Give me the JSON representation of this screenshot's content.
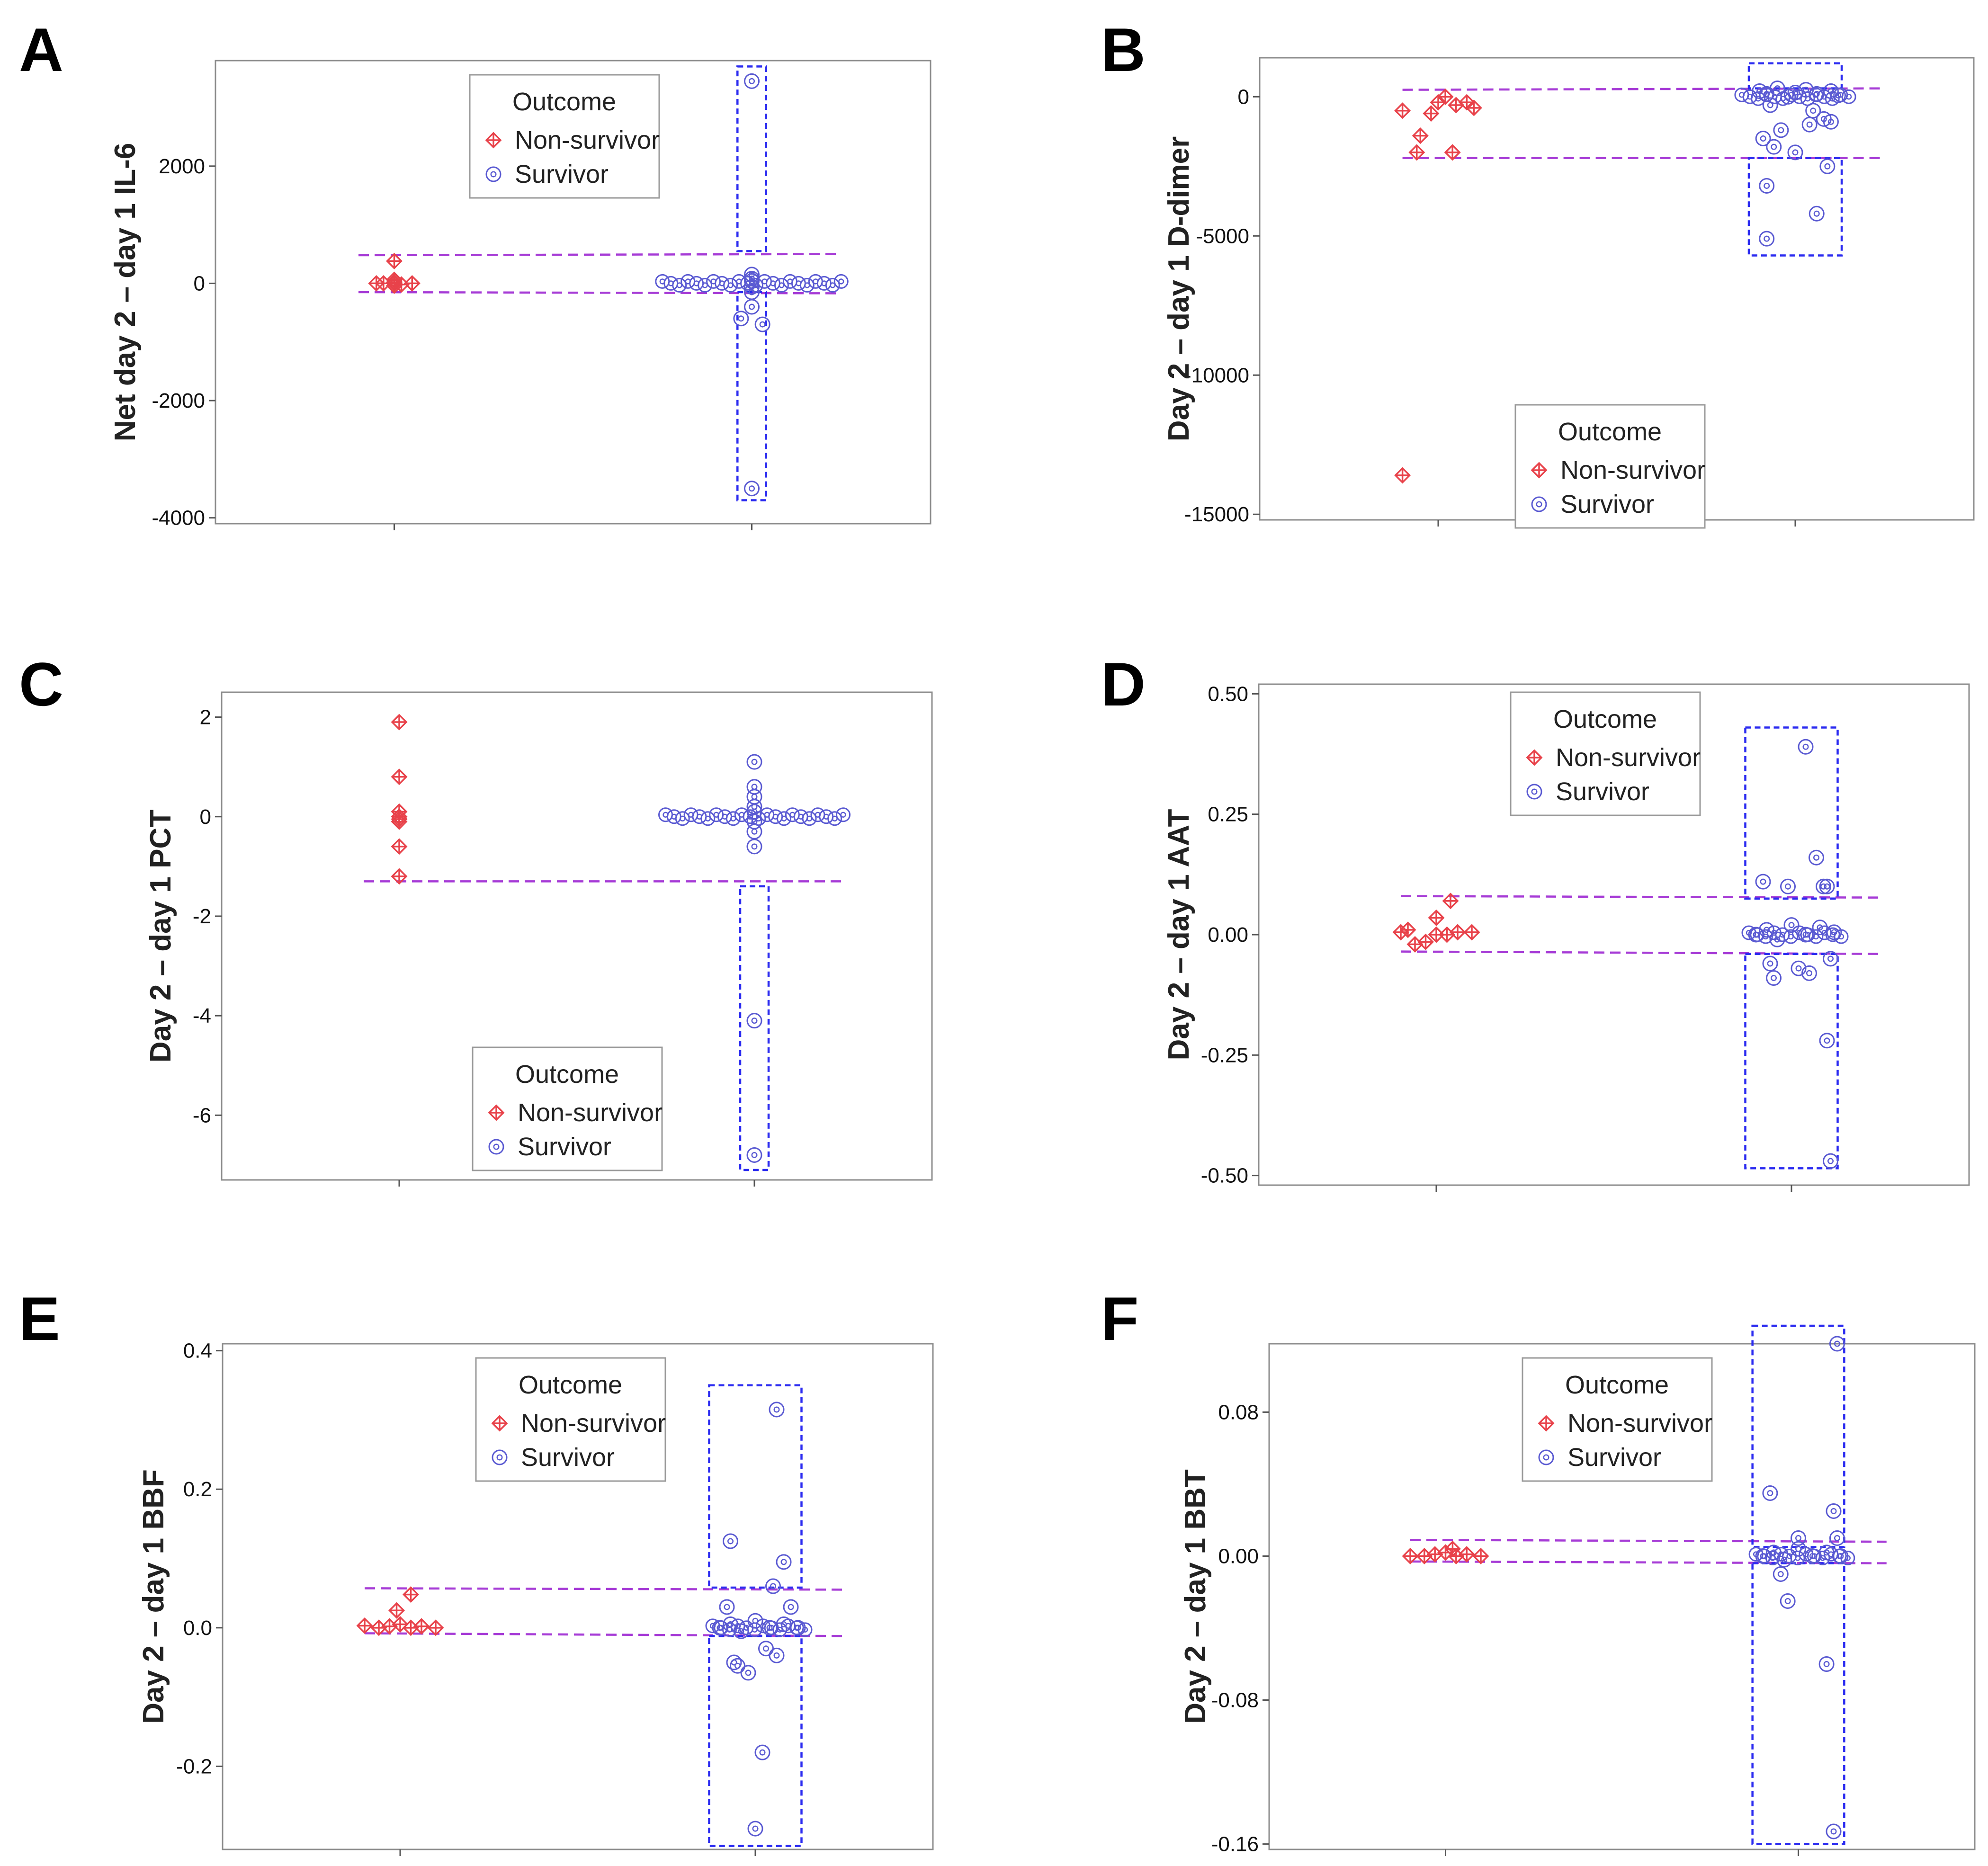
{
  "colors": {
    "non_survivor": "#e8424a",
    "survivor": "#5a5ad2",
    "threshold_line": "#a63bd6",
    "outlier_box": "#2b2bf0",
    "frame": "#8c8c8c"
  },
  "chart_data": [
    {
      "panel": "A",
      "type": "scatter",
      "ylabel": "Net day 2 – day 1 IL-6",
      "ylim": [
        -4100,
        3800
      ],
      "yticks": [
        2000,
        0,
        -2000,
        -4000
      ],
      "ytick_labels": [
        "2000",
        "0",
        "-2000",
        "-4000"
      ],
      "legend": {
        "title": "Outcome",
        "items": [
          "Non-survivor",
          "Survivor"
        ],
        "placement": "top-center"
      },
      "series": [
        {
          "name": "Non-survivor",
          "x": [
            0.95,
            1.0,
            1.0,
            1.0,
            1.0,
            1.02,
            1.05,
            0.97,
            1.0
          ],
          "y": [
            0,
            380,
            60,
            20,
            0,
            -20,
            0,
            0,
            -40
          ]
        },
        {
          "name": "Survivor",
          "x": [
            2.0,
            2.0,
            2.0,
            2.0,
            2.0,
            2.0,
            2.0,
            1.97,
            2.03,
            2.0
          ],
          "y": [
            3450,
            150,
            80,
            40,
            -60,
            -150,
            -400,
            -600,
            -700,
            -3500
          ]
        }
      ],
      "survivor_band": {
        "x_from": 1.75,
        "x_to": 2.25,
        "y": 0
      },
      "thresholds": [
        {
          "y_start": 480,
          "y_end": 500
        },
        {
          "y_start": -150,
          "y_end": -170
        }
      ],
      "outlier_boxes": [
        {
          "y_from": 550,
          "y_to": 3700
        },
        {
          "y_from": -3700,
          "y_to": -150
        }
      ]
    },
    {
      "panel": "B",
      "type": "scatter",
      "ylabel": "Day 2 – day 1 D-dimer",
      "ylim": [
        -15200,
        1400
      ],
      "yticks": [
        0,
        -5000,
        -10000,
        -15000
      ],
      "ytick_labels": [
        "0",
        "-5000",
        "-10000",
        "-15000"
      ],
      "legend": {
        "title": "Outcome",
        "items": [
          "Non-survivor",
          "Survivor"
        ],
        "placement": "bottom-center"
      },
      "series": [
        {
          "name": "Non-survivor",
          "x": [
            0.9,
            0.95,
            0.98,
            1.0,
            1.02,
            1.05,
            1.08,
            1.1,
            0.94,
            1.04,
            0.9
          ],
          "y": [
            -500,
            -1400,
            -600,
            -200,
            0,
            -300,
            -200,
            -400,
            -2000,
            -2000,
            -13600
          ]
        },
        {
          "name": "Survivor",
          "x": [
            1.9,
            1.92,
            1.95,
            1.98,
            2.0,
            2.03,
            2.06,
            2.1,
            2.12,
            1.93,
            2.05,
            2.08,
            1.96,
            2.04,
            2.1,
            1.91,
            1.94,
            2.0,
            2.09,
            1.92,
            2.06
          ],
          "y": [
            200,
            100,
            300,
            0,
            150,
            250,
            100,
            200,
            50,
            -300,
            -500,
            -800,
            -1200,
            -1000,
            -900,
            -1500,
            -1800,
            -2000,
            -2500,
            -3200,
            -4200
          ]
        }
      ],
      "extra_points": [
        {
          "x": 1.92,
          "y": -5100
        }
      ],
      "survivor_band": {
        "x_from": 1.85,
        "x_to": 2.15,
        "y": 0
      },
      "thresholds": [
        {
          "y_start": 250,
          "y_end": 300
        },
        {
          "y_start": -2200,
          "y_end": -2200
        }
      ],
      "outlier_boxes": [
        {
          "y_from": 300,
          "y_to": 1200
        },
        {
          "y_from": -5700,
          "y_to": -2200
        }
      ]
    },
    {
      "panel": "C",
      "type": "scatter",
      "ylabel": "Day 2 – day 1 PCT",
      "ylim": [
        -7.3,
        2.5
      ],
      "yticks": [
        2,
        0,
        -2,
        -4,
        -6
      ],
      "ytick_labels": [
        "2",
        "0",
        "-2",
        "-4",
        "-6"
      ],
      "legend": {
        "title": "Outcome",
        "items": [
          "Non-survivor",
          "Survivor"
        ],
        "placement": "bottom-center"
      },
      "series": [
        {
          "name": "Non-survivor",
          "x": [
            1.0,
            1.0,
            1.0,
            1.0,
            1.0,
            1.0,
            1.0,
            1.0
          ],
          "y": [
            1.9,
            0.8,
            0.1,
            0.0,
            -0.05,
            -0.1,
            -0.6,
            -1.2
          ]
        },
        {
          "name": "Survivor",
          "x": [
            2.0,
            2.0,
            2.0,
            2.0,
            2.0,
            2.0,
            2.0,
            2.0,
            2.0,
            2.0
          ],
          "y": [
            1.1,
            0.6,
            0.4,
            0.2,
            0.1,
            -0.1,
            -0.3,
            -0.6,
            -4.1,
            -6.8
          ]
        }
      ],
      "survivor_band": {
        "x_from": 1.75,
        "x_to": 2.25,
        "y": 0
      },
      "thresholds": [
        {
          "y_start": -1.3,
          "y_end": -1.3
        }
      ],
      "outlier_boxes": [
        {
          "y_from": -7.1,
          "y_to": -1.4
        }
      ]
    },
    {
      "panel": "D",
      "type": "scatter",
      "ylabel": "Day 2 – day 1 AAT",
      "ylim": [
        -0.52,
        0.52
      ],
      "yticks": [
        0.5,
        0.25,
        0.0,
        -0.25,
        -0.5
      ],
      "ytick_labels": [
        "0.50",
        "0.25",
        "0.00",
        "-0.25",
        "-0.50"
      ],
      "legend": {
        "title": "Outcome",
        "items": [
          "Non-survivor",
          "Survivor"
        ],
        "placement": "top-center"
      },
      "series": [
        {
          "name": "Non-survivor",
          "x": [
            0.9,
            0.94,
            0.97,
            1.0,
            1.03,
            1.06,
            1.1,
            1.04,
            0.92,
            1.0
          ],
          "y": [
            0.005,
            -0.02,
            -0.015,
            0.035,
            0.0,
            0.005,
            0.005,
            0.07,
            0.01,
            0.0
          ]
        },
        {
          "name": "Survivor",
          "x": [
            1.9,
            1.93,
            1.96,
            2.0,
            2.04,
            2.08,
            2.12,
            1.92,
            1.99,
            2.1,
            1.95,
            2.05,
            2.11,
            1.94,
            2.02,
            2.07,
            2.09,
            2.04,
            2.1,
            2.11
          ],
          "y": [
            0.0,
            0.01,
            -0.01,
            0.02,
            0.0,
            0.015,
            0.005,
            0.11,
            0.1,
            0.1,
            -0.09,
            -0.08,
            -0.05,
            -0.06,
            -0.07,
            0.16,
            0.1,
            0.39,
            -0.22,
            -0.47
          ]
        }
      ],
      "survivor_band": {
        "x_from": 1.88,
        "x_to": 2.14,
        "y": 0
      },
      "thresholds": [
        {
          "y_start": 0.08,
          "y_end": 0.077
        },
        {
          "y_start": -0.035,
          "y_end": -0.04
        }
      ],
      "outlier_boxes": [
        {
          "y_from": 0.075,
          "y_to": 0.43
        },
        {
          "y_from": -0.485,
          "y_to": -0.04
        }
      ]
    },
    {
      "panel": "E",
      "type": "scatter",
      "ylabel": "Day 2 – day 1 BBF",
      "ylim": [
        -0.32,
        0.41
      ],
      "yticks": [
        0.4,
        0.2,
        0.0,
        -0.2
      ],
      "ytick_labels": [
        "0.4",
        "0.2",
        "0.0",
        "-0.2"
      ],
      "legend": {
        "title": "Outcome",
        "items": [
          "Non-survivor",
          "Survivor"
        ],
        "placement": "top-center"
      },
      "series": [
        {
          "name": "Non-survivor",
          "x": [
            0.9,
            0.94,
            0.97,
            1.0,
            1.03,
            1.06,
            1.1,
            0.99,
            1.03
          ],
          "y": [
            0.003,
            0.0,
            0.002,
            0.005,
            0.0,
            0.002,
            0.0,
            0.025,
            0.048
          ]
        },
        {
          "name": "Survivor",
          "x": [
            1.9,
            1.93,
            1.96,
            2.0,
            2.04,
            2.08,
            2.12,
            1.92,
            2.05,
            2.1,
            1.94,
            1.98,
            2.06,
            2.03,
            1.95,
            2.08,
            1.93,
            2.06,
            2.02,
            2.0
          ],
          "y": [
            0.0,
            0.005,
            -0.005,
            0.01,
            0.0,
            0.005,
            0.0,
            0.03,
            0.06,
            0.03,
            -0.05,
            -0.065,
            -0.04,
            -0.03,
            -0.055,
            0.095,
            0.125,
            0.315,
            -0.18,
            -0.29
          ]
        }
      ],
      "survivor_band": {
        "x_from": 1.88,
        "x_to": 2.14,
        "y": 0
      },
      "thresholds": [
        {
          "y_start": 0.057,
          "y_end": 0.055
        },
        {
          "y_start": -0.008,
          "y_end": -0.012
        }
      ],
      "outlier_boxes": [
        {
          "y_from": 0.058,
          "y_to": 0.35
        },
        {
          "y_from": -0.315,
          "y_to": -0.012
        }
      ]
    },
    {
      "panel": "F",
      "type": "scatter",
      "ylabel": "Day 2 – day 1 BBT",
      "ylim": [
        -0.163,
        0.118
      ],
      "yticks": [
        0.08,
        0.0,
        -0.08,
        -0.16
      ],
      "ytick_labels": [
        "0.08",
        "0.00",
        "-0.08",
        "-0.16"
      ],
      "legend": {
        "title": "Outcome",
        "items": [
          "Non-survivor",
          "Survivor"
        ],
        "placement": "top-center"
      },
      "series": [
        {
          "name": "Non-survivor",
          "x": [
            0.9,
            0.94,
            0.97,
            1.0,
            1.03,
            1.06,
            1.1,
            1.02
          ],
          "y": [
            0.0,
            0.0,
            0.001,
            0.002,
            0.0,
            0.001,
            0.0,
            0.004
          ]
        },
        {
          "name": "Survivor",
          "x": [
            1.9,
            1.93,
            1.96,
            2.0,
            2.04,
            2.08,
            2.12,
            1.92,
            2.0,
            2.1,
            1.95,
            1.97,
            2.11,
            2.08,
            2.11,
            2.1
          ],
          "y": [
            0.0,
            0.002,
            -0.002,
            0.004,
            0.0,
            0.002,
            0.0,
            0.035,
            0.01,
            0.025,
            -0.01,
            -0.025,
            0.01,
            -0.06,
            0.118,
            -0.153
          ]
        }
      ],
      "survivor_band": {
        "x_from": 1.88,
        "x_to": 2.14,
        "y": 0
      },
      "thresholds": [
        {
          "y_start": 0.009,
          "y_end": 0.008
        },
        {
          "y_start": -0.003,
          "y_end": -0.004
        }
      ],
      "outlier_boxes": [
        {
          "y_from": 0.005,
          "y_to": 0.128
        },
        {
          "y_from": -0.16,
          "y_to": -0.004
        }
      ]
    }
  ]
}
